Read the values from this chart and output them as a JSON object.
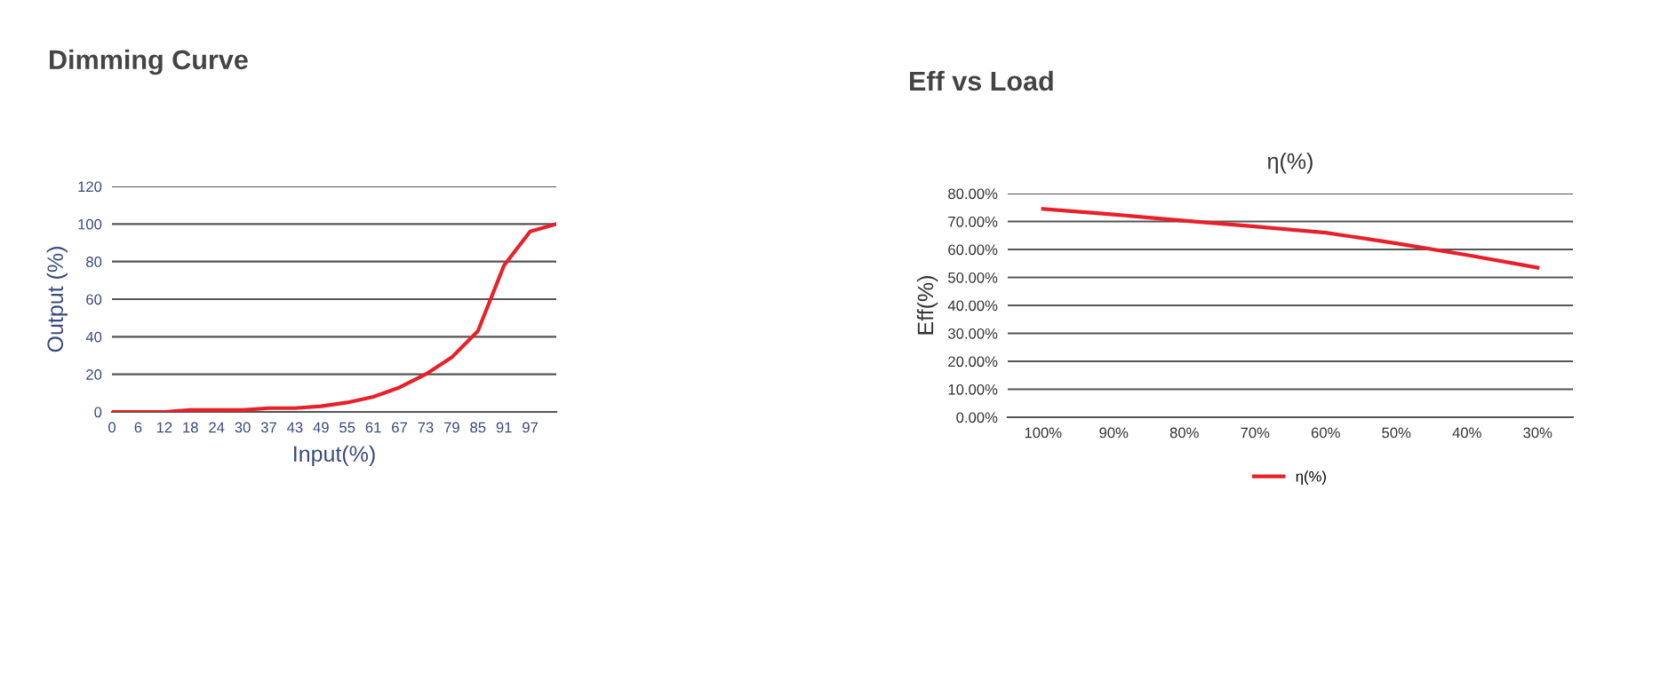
{
  "chart_data": [
    {
      "type": "line",
      "title": "Dimming Curve",
      "xlabel": "Input(%)",
      "ylabel": "Output (%)",
      "categories": [
        "0",
        "6",
        "12",
        "18",
        "24",
        "30",
        "37",
        "43",
        "49",
        "55",
        "61",
        "67",
        "73",
        "79",
        "85",
        "91",
        "97",
        null
      ],
      "series": [
        {
          "color": "#e8202a",
          "values": [
            0,
            0,
            0,
            1,
            1,
            1,
            2,
            2,
            3,
            5,
            8,
            13,
            20,
            29,
            43,
            78,
            96,
            100
          ]
        }
      ],
      "ylim": [
        0,
        120
      ],
      "yticks": [
        0,
        20,
        40,
        60,
        80,
        100,
        120
      ],
      "grid": "y",
      "legend": false
    },
    {
      "type": "line",
      "title": "Eff vs Load",
      "subtitle": "η(%)",
      "ylabel": "Eff(%)",
      "categories": [
        "100%",
        "90%",
        "80%",
        "70%",
        "60%",
        "50%",
        "40%",
        "30%"
      ],
      "series": [
        {
          "name": "η(%)",
          "color": "#e8202a",
          "values": [
            74.5,
            72.5,
            70.3,
            68.2,
            66,
            62.2,
            58,
            53.5
          ]
        }
      ],
      "ylim": [
        0,
        80
      ],
      "yticks": [
        {
          "value": 0,
          "label": "0.00%"
        },
        {
          "value": 10,
          "label": "10.00%"
        },
        {
          "value": 20,
          "label": "20.00%"
        },
        {
          "value": 30,
          "label": "30.00%"
        },
        {
          "value": 40,
          "label": "40.00%"
        },
        {
          "value": 50,
          "label": "50.00%"
        },
        {
          "value": 60,
          "label": "60.00%"
        },
        {
          "value": 70,
          "label": "70.00%"
        },
        {
          "value": 80,
          "label": "80.00%"
        }
      ],
      "grid": "y",
      "legend": "bottom"
    }
  ]
}
